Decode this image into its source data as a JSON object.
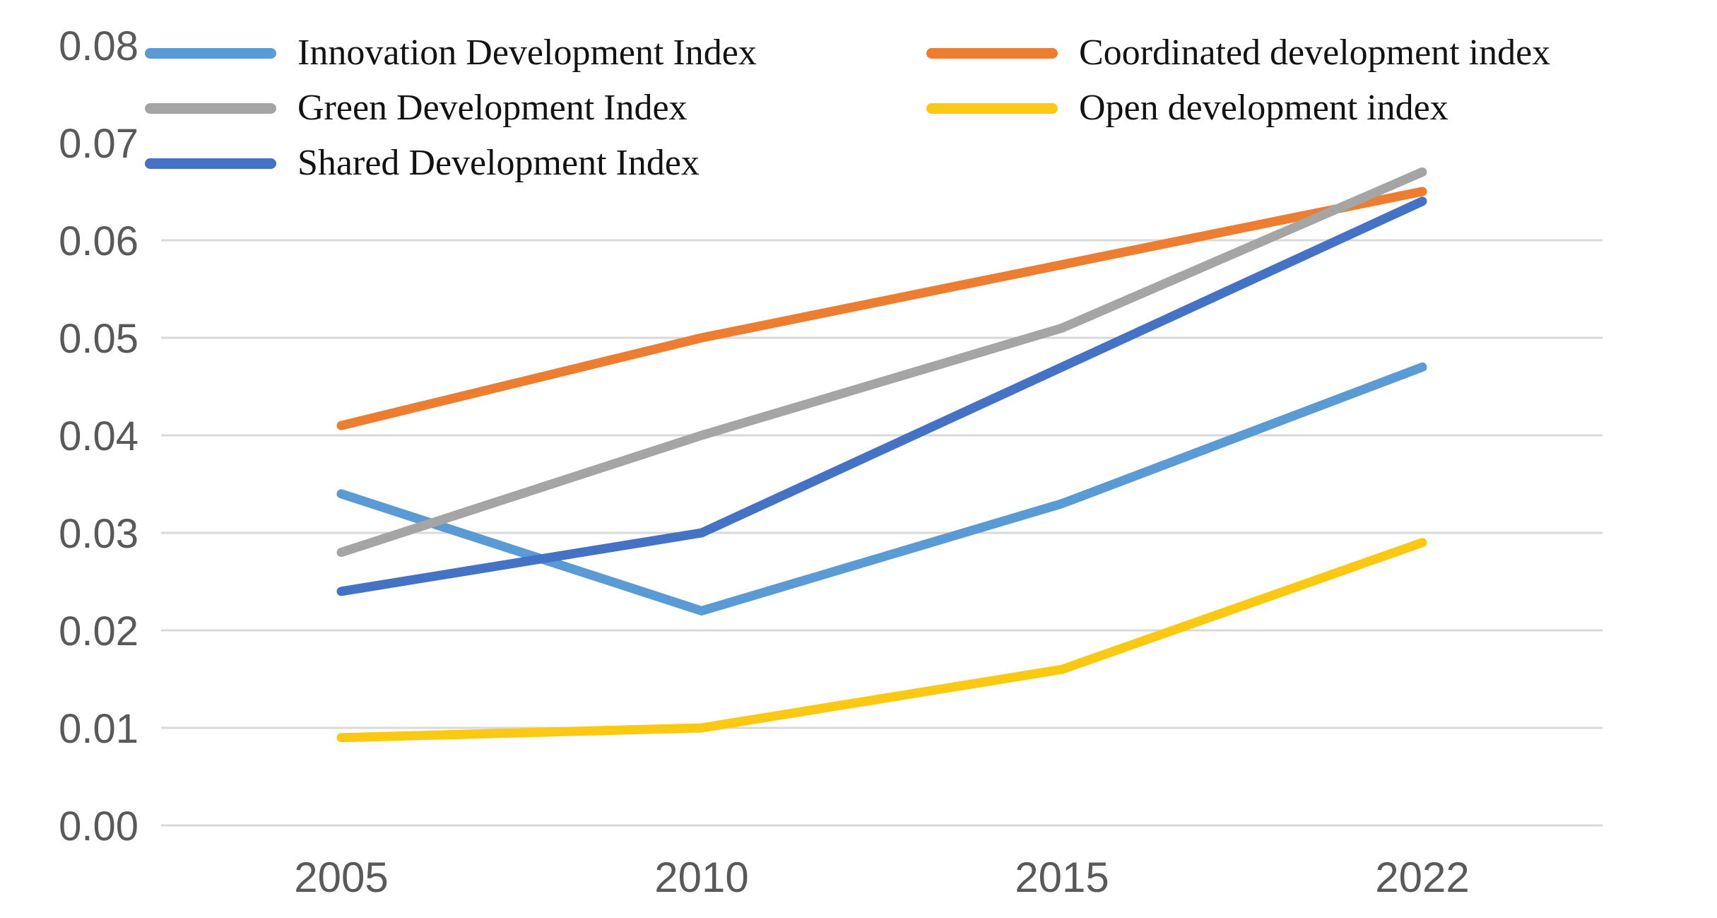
{
  "chart_data": {
    "type": "line",
    "title": "",
    "xlabel": "",
    "ylabel": "",
    "categories": [
      "2005",
      "2010",
      "2015",
      "2022"
    ],
    "series": [
      {
        "name": "Innovation Development Index",
        "color": "#5B9BD5",
        "values": [
          0.034,
          0.022,
          0.033,
          0.047
        ]
      },
      {
        "name": "Coordinated development index",
        "color": "#ED7D31",
        "values": [
          0.041,
          0.05,
          0.0575,
          0.065
        ]
      },
      {
        "name": "Green Development Index",
        "color": "#A5A5A5",
        "values": [
          0.028,
          0.04,
          0.051,
          0.067
        ]
      },
      {
        "name": "Open development index",
        "color": "#FBC911",
        "values": [
          0.009,
          0.01,
          0.016,
          0.029
        ]
      },
      {
        "name": "Shared Development Index",
        "color": "#4472C4",
        "values": [
          0.024,
          0.03,
          0.047,
          0.064
        ]
      }
    ],
    "ylim": [
      0,
      0.08
    ],
    "y_ticks": [
      {
        "label": "0.00",
        "value": 0.0
      },
      {
        "label": "0.01",
        "value": 0.01
      },
      {
        "label": "0.02",
        "value": 0.02
      },
      {
        "label": "0.03",
        "value": 0.03
      },
      {
        "label": "0.04",
        "value": 0.04
      },
      {
        "label": "0.05",
        "value": 0.05
      },
      {
        "label": "0.06",
        "value": 0.06
      },
      {
        "label": "0.07",
        "value": 0.07
      },
      {
        "label": "0.08",
        "value": 0.08
      }
    ],
    "gridline_max_value": 0.061,
    "grid": "horizontal gridlines 0.00-0.06; 0.07-0.08 hidden behind legend",
    "legend_position": "top, two columns"
  },
  "legend": {
    "columns": [
      {
        "series_indexes": [
          0,
          2,
          4
        ]
      },
      {
        "series_indexes": [
          1,
          3
        ]
      }
    ]
  },
  "colors": {
    "gridline": "#D9D9D9",
    "axis_label": "#595959",
    "legend_text": "#121212",
    "background": "#FFFFFF"
  }
}
